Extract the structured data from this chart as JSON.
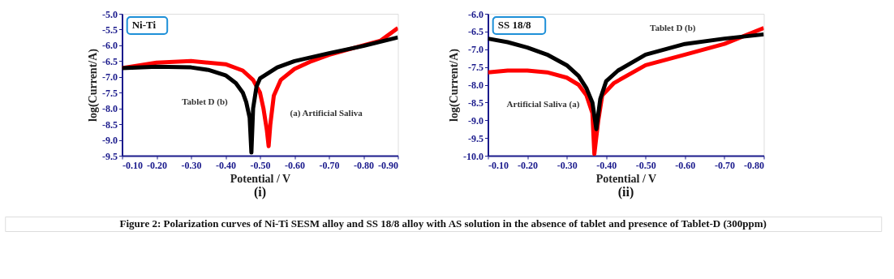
{
  "chart_data": [
    {
      "type": "line",
      "title": "(i)",
      "xlabel": "Potential / V",
      "ylabel": "log(Current/A)",
      "xlim": [
        -0.1,
        -0.9
      ],
      "ylim": [
        -9.5,
        -5.0
      ],
      "xticks": [
        {
          "value": -0.1,
          "label": "-0.10"
        },
        {
          "value": -0.2,
          "label": "-0.20"
        },
        {
          "value": -0.3,
          "label": "-0.30"
        },
        {
          "value": -0.4,
          "label": "-0.40"
        },
        {
          "value": -0.5,
          "label": "-0.50"
        },
        {
          "value": -0.6,
          "label": "-0.60"
        },
        {
          "value": -0.7,
          "label": "-0.70"
        },
        {
          "value": -0.8,
          "label": "-0.80"
        },
        {
          "value": -0.9,
          "label": "-0.90"
        }
      ],
      "yticks": [
        {
          "value": -9.5,
          "label": "-9.5"
        },
        {
          "value": -9.0,
          "label": "-9.0"
        },
        {
          "value": -8.5,
          "label": "-8.5"
        },
        {
          "value": -8.0,
          "label": "-8.0"
        },
        {
          "value": -7.5,
          "label": "-7.5"
        },
        {
          "value": -7.0,
          "label": "-7.0"
        },
        {
          "value": -6.5,
          "label": "-6.5"
        },
        {
          "value": -6.0,
          "label": "-6.0"
        },
        {
          "value": -5.5,
          "label": "-5.5"
        },
        {
          "value": -5.0,
          "label": "-5.0"
        }
      ],
      "series": [
        {
          "color": "#ff0000",
          "x": [
            -0.1,
            -0.2,
            -0.3,
            -0.4,
            -0.45,
            -0.48,
            -0.5,
            -0.51,
            -0.52,
            -0.525,
            -0.53,
            -0.54,
            -0.56,
            -0.6,
            -0.65,
            -0.7,
            -0.8,
            -0.85,
            -0.9
          ],
          "values": [
            -6.72,
            -6.55,
            -6.5,
            -6.6,
            -6.8,
            -7.1,
            -7.5,
            -8.0,
            -8.7,
            -9.2,
            -8.5,
            -7.6,
            -7.1,
            -6.75,
            -6.5,
            -6.3,
            -6.0,
            -5.85,
            -5.45
          ]
        },
        {
          "color": "#000000",
          "x": [
            -0.1,
            -0.2,
            -0.3,
            -0.35,
            -0.4,
            -0.43,
            -0.45,
            -0.46,
            -0.47,
            -0.475,
            -0.48,
            -0.49,
            -0.5,
            -0.55,
            -0.6,
            -0.7,
            -0.8,
            -0.9
          ],
          "values": [
            -6.72,
            -6.68,
            -6.7,
            -6.78,
            -6.95,
            -7.2,
            -7.5,
            -7.8,
            -8.3,
            -9.4,
            -8.0,
            -7.3,
            -7.05,
            -6.7,
            -6.5,
            -6.25,
            -6.02,
            -5.75
          ]
        }
      ],
      "annotations": [
        "Ni-Ti",
        "Tablet  D  (b)",
        "(a)  Artificial Saliva",
        "Figure 2: Polarization curves of Ni-Ti SESM alloy and SS 18/8 alloy with AS solution in the absence of tablet and presence of Tablet-D (300ppm)"
      ],
      "grid": false
    },
    {
      "type": "line",
      "title": "(ii)",
      "xlabel": "Potential / V",
      "ylabel": "log(Current/A)",
      "xlim": [
        -0.1,
        -0.8
      ],
      "ylim": [
        -10.0,
        -6.0
      ],
      "xticks": [
        {
          "value": -0.1,
          "label": "-0.10"
        },
        {
          "value": -0.2,
          "label": "-0.20"
        },
        {
          "value": -0.3,
          "label": "-0.30"
        },
        {
          "value": -0.4,
          "label": "-0.40"
        },
        {
          "value": -0.5,
          "label": "-0.50"
        },
        {
          "value": -0.6,
          "label": "-0.60"
        },
        {
          "value": -0.7,
          "label": "-0.70"
        },
        {
          "value": -0.8,
          "label": "-0.80"
        }
      ],
      "yticks": [
        {
          "value": -10.0,
          "label": "-10.0"
        },
        {
          "value": -9.5,
          "label": "-9.5"
        },
        {
          "value": -9.0,
          "label": "-9.0"
        },
        {
          "value": -8.5,
          "label": "-8.5"
        },
        {
          "value": -8.0,
          "label": "-8.0"
        },
        {
          "value": -7.5,
          "label": "-7.5"
        },
        {
          "value": -7.0,
          "label": "-7.0"
        },
        {
          "value": -6.5,
          "label": "-6.5"
        },
        {
          "value": -6.0,
          "label": "-6.0"
        }
      ],
      "series": [
        {
          "color": "#ff0000",
          "x": [
            -0.1,
            -0.15,
            -0.2,
            -0.25,
            -0.3,
            -0.33,
            -0.35,
            -0.365,
            -0.37,
            -0.38,
            -0.39,
            -0.42,
            -0.5,
            -0.6,
            -0.7,
            -0.8
          ],
          "values": [
            -7.65,
            -7.6,
            -7.6,
            -7.65,
            -7.8,
            -8.0,
            -8.3,
            -8.8,
            -9.95,
            -9.0,
            -8.3,
            -7.95,
            -7.45,
            -7.15,
            -6.85,
            -6.4
          ]
        },
        {
          "color": "#000000",
          "x": [
            -0.1,
            -0.15,
            -0.2,
            -0.25,
            -0.3,
            -0.33,
            -0.35,
            -0.365,
            -0.375,
            -0.385,
            -0.4,
            -0.43,
            -0.5,
            -0.6,
            -0.7,
            -0.8
          ],
          "values": [
            -6.7,
            -6.8,
            -6.95,
            -7.15,
            -7.45,
            -7.75,
            -8.1,
            -8.5,
            -9.25,
            -8.4,
            -7.9,
            -7.6,
            -7.15,
            -6.85,
            -6.7,
            -6.58
          ]
        }
      ],
      "annotations": [
        "SS 18/8",
        "Tablet D (b)",
        "Artificial Saliva (a)"
      ],
      "grid": false
    }
  ]
}
